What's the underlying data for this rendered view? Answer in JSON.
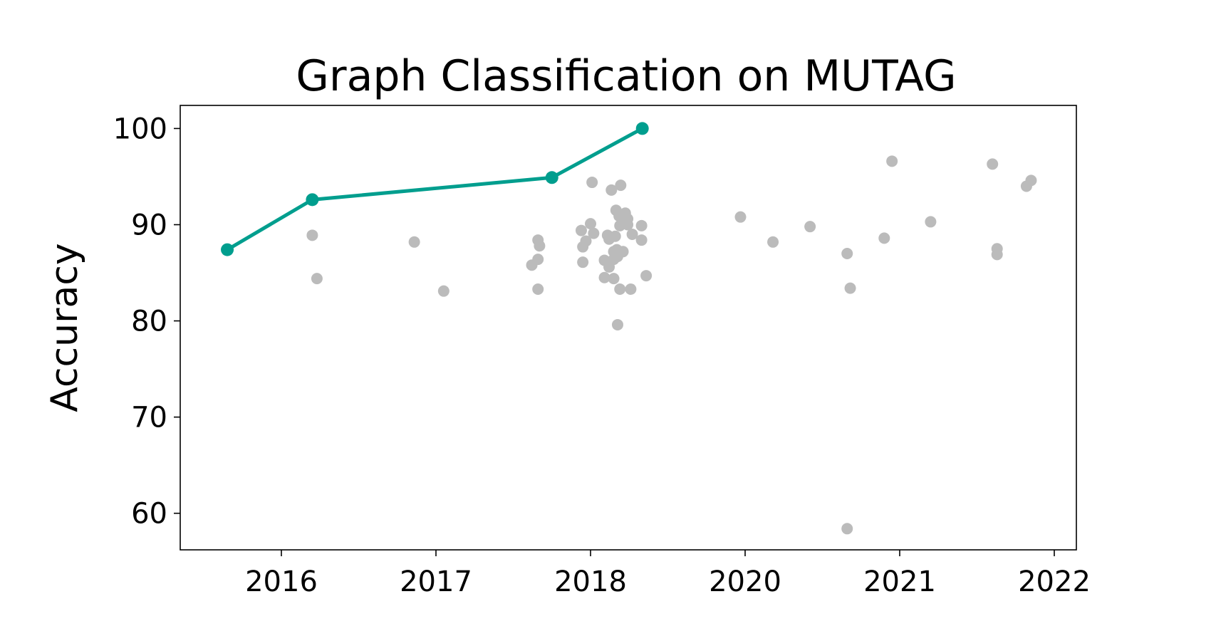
{
  "chart_data": {
    "type": "scatter",
    "title": "Graph Classification on MUTAG",
    "xlabel": "",
    "ylabel": "Accuracy",
    "x_scale": "compressed-years",
    "x_ticks": [
      {
        "label": "2016",
        "value": 2016
      },
      {
        "label": "2017",
        "value": 2017
      },
      {
        "label": "2018",
        "value": 2018
      },
      {
        "label": "2020",
        "value": 2020
      },
      {
        "label": "2021",
        "value": 2021
      },
      {
        "label": "2022",
        "value": 2022
      }
    ],
    "y_ticks": [
      60,
      70,
      80,
      90,
      100
    ],
    "ylim": [
      56.2,
      102.4
    ],
    "grid": false,
    "colors": {
      "sota_line": "#009e8e",
      "other_points": "#bbbbbb"
    },
    "series": [
      {
        "role": "state-of-the-art",
        "points": [
          {
            "x": 2015.65,
            "y": 87.4
          },
          {
            "x": 2016.2,
            "y": 92.6
          },
          {
            "x": 2017.75,
            "y": 94.9
          },
          {
            "x": 2018.67,
            "y": 100.0
          }
        ]
      },
      {
        "role": "other",
        "points": [
          {
            "x": 2016.2,
            "y": 88.9
          },
          {
            "x": 2016.23,
            "y": 84.4
          },
          {
            "x": 2016.86,
            "y": 88.2
          },
          {
            "x": 2017.05,
            "y": 83.1
          },
          {
            "x": 2017.62,
            "y": 85.8
          },
          {
            "x": 2017.66,
            "y": 86.4
          },
          {
            "x": 2017.66,
            "y": 88.4
          },
          {
            "x": 2017.67,
            "y": 87.8
          },
          {
            "x": 2017.66,
            "y": 83.3
          },
          {
            "x": 2017.94,
            "y": 89.4
          },
          {
            "x": 2017.95,
            "y": 87.7
          },
          {
            "x": 2017.95,
            "y": 86.1
          },
          {
            "x": 2017.97,
            "y": 88.3
          },
          {
            "x": 2018.0,
            "y": 90.1
          },
          {
            "x": 2018.02,
            "y": 94.4
          },
          {
            "x": 2018.04,
            "y": 89.1
          },
          {
            "x": 2018.18,
            "y": 86.3
          },
          {
            "x": 2018.18,
            "y": 84.5
          },
          {
            "x": 2018.22,
            "y": 88.9
          },
          {
            "x": 2018.24,
            "y": 85.6
          },
          {
            "x": 2018.24,
            "y": 88.5
          },
          {
            "x": 2018.27,
            "y": 93.6
          },
          {
            "x": 2018.3,
            "y": 87.2
          },
          {
            "x": 2018.3,
            "y": 86.4
          },
          {
            "x": 2018.3,
            "y": 84.4
          },
          {
            "x": 2018.32,
            "y": 88.8
          },
          {
            "x": 2018.33,
            "y": 91.5
          },
          {
            "x": 2018.34,
            "y": 87.4
          },
          {
            "x": 2018.35,
            "y": 86.7
          },
          {
            "x": 2018.35,
            "y": 79.6
          },
          {
            "x": 2018.37,
            "y": 90.9
          },
          {
            "x": 2018.38,
            "y": 89.9
          },
          {
            "x": 2018.38,
            "y": 83.3
          },
          {
            "x": 2018.39,
            "y": 94.1
          },
          {
            "x": 2018.41,
            "y": 90.6
          },
          {
            "x": 2018.42,
            "y": 87.2
          },
          {
            "x": 2018.45,
            "y": 91.2
          },
          {
            "x": 2018.48,
            "y": 90.6
          },
          {
            "x": 2018.48,
            "y": 90.0
          },
          {
            "x": 2018.52,
            "y": 83.3
          },
          {
            "x": 2018.54,
            "y": 89.0
          },
          {
            "x": 2018.66,
            "y": 89.9
          },
          {
            "x": 2018.66,
            "y": 88.4
          },
          {
            "x": 2018.72,
            "y": 84.7
          },
          {
            "x": 2019.94,
            "y": 90.8
          },
          {
            "x": 2020.18,
            "y": 88.2
          },
          {
            "x": 2020.42,
            "y": 89.8
          },
          {
            "x": 2020.66,
            "y": 87.0
          },
          {
            "x": 2020.68,
            "y": 83.4
          },
          {
            "x": 2020.66,
            "y": 58.4
          },
          {
            "x": 2020.9,
            "y": 88.6
          },
          {
            "x": 2020.95,
            "y": 96.6
          },
          {
            "x": 2021.2,
            "y": 90.3
          },
          {
            "x": 2021.6,
            "y": 96.3
          },
          {
            "x": 2021.63,
            "y": 87.5
          },
          {
            "x": 2021.63,
            "y": 86.9
          },
          {
            "x": 2021.82,
            "y": 94.0
          },
          {
            "x": 2021.85,
            "y": 94.6
          }
        ]
      }
    ]
  }
}
